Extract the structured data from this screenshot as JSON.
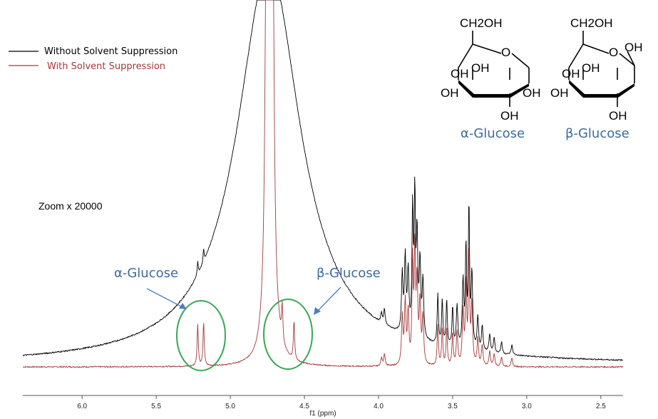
{
  "chart_data": {
    "type": "line",
    "xlabel": "f1 (ppm)",
    "x_reversed": true,
    "xlim": [
      6.4,
      2.35
    ],
    "x_ticks": [
      "6.0",
      "5.5",
      "5.0",
      "4.5",
      "4.0",
      "3.5",
      "3.0",
      "2.5"
    ],
    "grid": false,
    "legend_position": "top-left",
    "series": [
      {
        "name": "Without Solvent Suppression",
        "color": "#000000"
      },
      {
        "name": "With Solvent Suppression",
        "color": "#a33a3a"
      }
    ],
    "annotations": {
      "zoom": "Zoom x 20000",
      "alpha_label": "α-Glucose",
      "beta_label": "β-Glucose",
      "alpha_peaks_ppm": [
        5.22,
        5.18
      ],
      "beta_peaks_ppm": [
        4.65,
        4.57
      ],
      "water_peak_ppm": 4.74,
      "circle_color": "#3aa655",
      "arrow_color": "#4a7fc0"
    },
    "structures": {
      "alpha": {
        "name": "α-Glucose",
        "labels": [
          "CH2OH",
          "O",
          "OH",
          "OH",
          "OH",
          "OH",
          "OH"
        ]
      },
      "beta": {
        "name": "β-Glucose",
        "labels": [
          "CH2OH",
          "O",
          "OH",
          "OH",
          "OH",
          "OH",
          "OH"
        ]
      }
    }
  }
}
